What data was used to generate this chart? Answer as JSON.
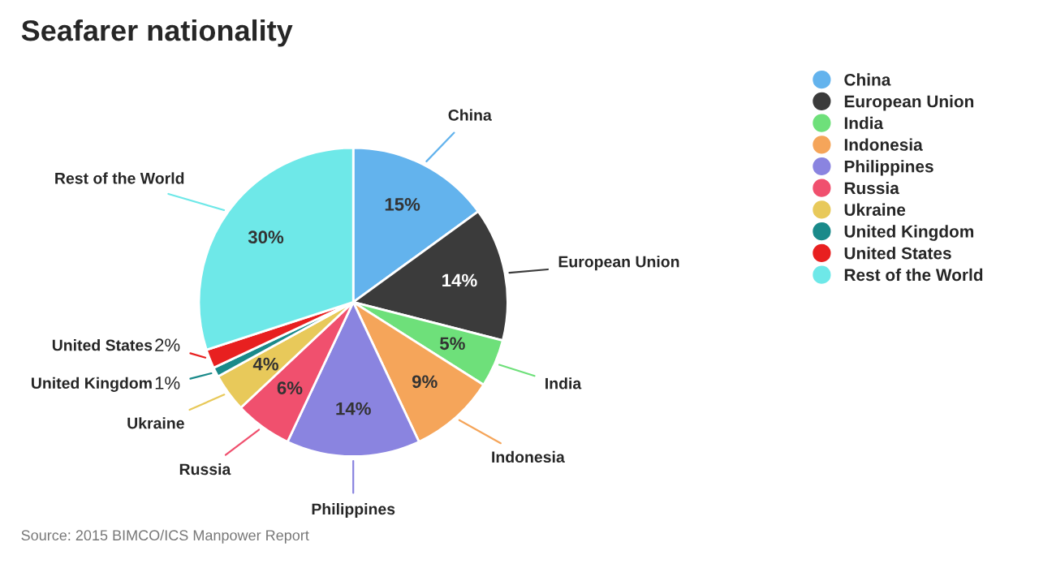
{
  "chart_data": {
    "type": "pie",
    "title": "Seafarer nationality",
    "categories": [
      "China",
      "European Union",
      "India",
      "Indonesia",
      "Philippines",
      "Russia",
      "Ukraine",
      "United Kingdom",
      "United States",
      "Rest of the World"
    ],
    "values": [
      15,
      14,
      5,
      9,
      14,
      6,
      4,
      1,
      2,
      30
    ],
    "colors": [
      "#63b3ed",
      "#3b3b3b",
      "#6ee07a",
      "#f5a55a",
      "#8a84e0",
      "#f0506e",
      "#e8c95a",
      "#1a8a8a",
      "#e82020",
      "#6ee8e8"
    ],
    "value_labels": [
      "15%",
      "14%",
      "5%",
      "9%",
      "14%",
      "6%",
      "4%",
      "1%",
      "2%",
      "30%"
    ],
    "legend": "right",
    "annotations": [
      "Source: 2015 BIMCO/ICS Manpower Report"
    ]
  }
}
